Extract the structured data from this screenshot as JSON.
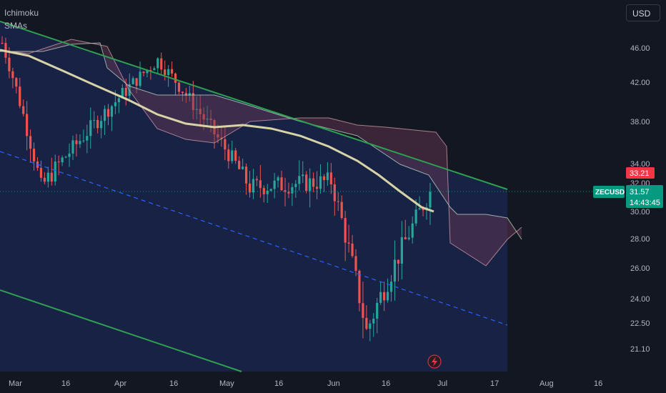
{
  "legend": {
    "indicator1": "Ichimoku",
    "indicator2": "SMAs"
  },
  "currency_button": "USD",
  "symbol_label": "ZECUSD",
  "colors": {
    "background": "#131722",
    "channel_fill": "#182244",
    "channel_line": "#2fa052",
    "midline": "#2962ff",
    "up_candle": "#26a69a",
    "down_candle": "#ef5350",
    "sma": "#d8d3a6",
    "cloud_bear": "#6a3a55",
    "cloud_bull": "#3a3a66",
    "price_tag": "#089981",
    "high_tag": "#f23645"
  },
  "chart_data": {
    "type": "candlestick",
    "symbol": "ZECUSD",
    "y_axis_ticks": [
      "46.00",
      "42.00",
      "38.00",
      "34.00",
      "30.00",
      "28.00",
      "26.00",
      "24.00",
      "22.50",
      "21.10"
    ],
    "x_axis_ticks": [
      "Mar",
      "16",
      "Apr",
      "16",
      "May",
      "16",
      "Jun",
      "16",
      "Jul",
      "17",
      "Aug",
      "16"
    ],
    "price_labels": {
      "high": "33.21",
      "last": "31.57",
      "countdown": "14:43:45",
      "hidden": "32.00"
    },
    "series": [
      {
        "name": "Ichimoku",
        "kind": "cloud"
      },
      {
        "name": "SMAs",
        "kind": "line"
      }
    ],
    "key_points": [
      {
        "date": "Mar 1",
        "close": 46.5
      },
      {
        "date": "Mar 12",
        "close": 32.0
      },
      {
        "date": "Apr 14",
        "close": 44.5
      },
      {
        "date": "May 10",
        "close": 32.0
      },
      {
        "date": "Jun 2",
        "close": 32.5
      },
      {
        "date": "Jun 12",
        "close": 22.0
      },
      {
        "date": "Jun 30",
        "close": 31.57
      }
    ]
  }
}
